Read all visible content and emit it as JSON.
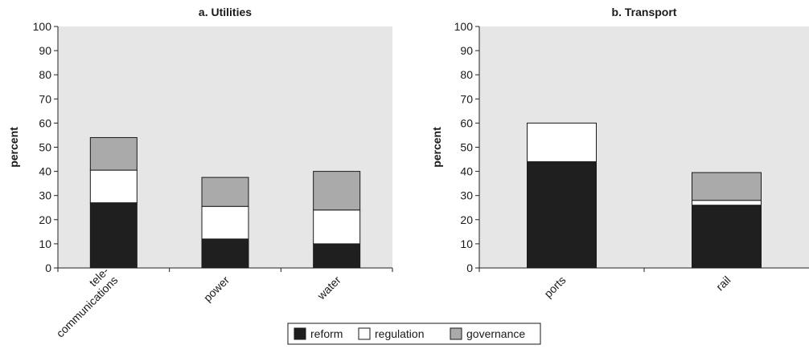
{
  "chart_data": [
    {
      "type": "bar",
      "stacked": true,
      "title": "a. Utilities",
      "xlabel": "",
      "ylabel": "percent",
      "ylim": [
        0,
        100
      ],
      "yticks": [
        0,
        10,
        20,
        30,
        40,
        50,
        60,
        70,
        80,
        90,
        100
      ],
      "categories": [
        "tele-\ncommunications",
        "power",
        "water"
      ],
      "series": [
        {
          "name": "reform",
          "values": [
            27,
            12,
            10
          ]
        },
        {
          "name": "regulation",
          "values": [
            13.5,
            13.5,
            14
          ]
        },
        {
          "name": "governance",
          "values": [
            13.5,
            12,
            16
          ]
        }
      ],
      "grid": false,
      "background": "#e6e6e6"
    },
    {
      "type": "bar",
      "stacked": true,
      "title": "b. Transport",
      "xlabel": "",
      "ylabel": "percent",
      "ylim": [
        0,
        100
      ],
      "yticks": [
        0,
        10,
        20,
        30,
        40,
        50,
        60,
        70,
        80,
        90,
        100
      ],
      "categories": [
        "ports",
        "rail"
      ],
      "series": [
        {
          "name": "reform",
          "values": [
            44,
            26
          ]
        },
        {
          "name": "regulation",
          "values": [
            16,
            2
          ]
        },
        {
          "name": "governance",
          "values": [
            0,
            11.5
          ]
        }
      ],
      "grid": false,
      "background": "#e6e6e6"
    }
  ],
  "legend": {
    "placement": "bottom-center",
    "items": [
      {
        "label": "reform",
        "color": "#1f1f1f"
      },
      {
        "label": "regulation",
        "color": "#ffffff"
      },
      {
        "label": "governance",
        "color": "#aaaaaa"
      }
    ]
  },
  "colors": {
    "reform": "#1f1f1f",
    "regulation": "#ffffff",
    "governance": "#aaaaaa",
    "plot_background": "#e6e6e6"
  }
}
